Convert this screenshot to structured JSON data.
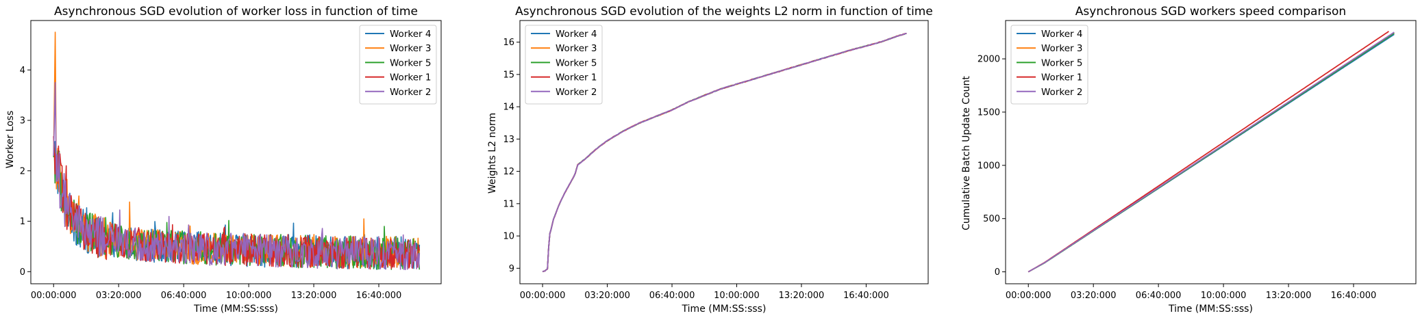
{
  "chart_data": [
    {
      "type": "line",
      "title": "Asynchronous SGD evolution of worker loss in function of time",
      "xlabel": "Time (MM:SS:sss)",
      "ylabel": "Worker Loss",
      "x_unit": "seconds",
      "xlim": [
        -4200,
        71500
      ],
      "ylim": [
        -0.24,
        4.98
      ],
      "xticks": [
        0,
        12000,
        24000,
        36000,
        48000,
        60000
      ],
      "xtick_labels": [
        "00:00:000",
        "03:20:000",
        "06:40:000",
        "10:00:000",
        "13:20:000",
        "16:40:000"
      ],
      "yticks": [
        0,
        1,
        2,
        3,
        4
      ],
      "ytick_labels": [
        "0",
        "1",
        "2",
        "3",
        "4"
      ],
      "legend": "top-right",
      "series": [
        {
          "name": "Worker 4",
          "color": "#1f77b4",
          "x": [
            0,
            500,
            1000,
            1500,
            2000,
            3000,
            4000,
            5000,
            6000,
            8000,
            10000,
            12000,
            15000,
            18000,
            21000,
            24000,
            27000,
            30000,
            33000,
            36000,
            39000,
            42000,
            45000,
            48000,
            51000,
            54000,
            57000,
            60000,
            63000,
            66000,
            67500
          ],
          "y": [
            2.3,
            2.2,
            1.9,
            1.6,
            1.4,
            1.15,
            0.95,
            0.85,
            0.78,
            0.7,
            0.65,
            0.6,
            0.55,
            0.52,
            0.5,
            0.48,
            0.46,
            0.45,
            0.44,
            0.43,
            0.42,
            0.41,
            0.4,
            0.4,
            0.39,
            0.38,
            0.38,
            0.37,
            0.37,
            0.36,
            0.36
          ]
        },
        {
          "name": "Worker 3",
          "color": "#ff7f0e",
          "x": [
            0,
            300,
            500,
            1000,
            1500,
            2000,
            3000,
            4000,
            5000,
            6000,
            8000,
            10000,
            12000,
            15000,
            18000,
            21000,
            24000,
            27000,
            30000,
            33000,
            36000,
            39000,
            42000,
            45000,
            48000,
            51000,
            54000,
            57000,
            60000,
            63000,
            66000,
            67500
          ],
          "y": [
            2.3,
            4.75,
            2.1,
            1.85,
            1.55,
            1.4,
            1.15,
            0.98,
            0.87,
            0.8,
            0.71,
            0.66,
            0.61,
            0.56,
            0.53,
            0.5,
            0.48,
            0.47,
            0.46,
            0.45,
            0.44,
            0.43,
            0.42,
            0.41,
            0.41,
            0.4,
            0.39,
            0.39,
            0.38,
            0.38,
            0.37,
            0.37
          ]
        },
        {
          "name": "Worker 5",
          "color": "#2ca02c",
          "x": [
            0,
            500,
            1000,
            1500,
            2000,
            3000,
            4000,
            5000,
            6000,
            8000,
            10000,
            12000,
            15000,
            18000,
            21000,
            24000,
            27000,
            30000,
            33000,
            36000,
            39000,
            42000,
            45000,
            48000,
            51000,
            54000,
            57000,
            60000,
            63000,
            66000,
            67500
          ],
          "y": [
            2.3,
            2.15,
            1.9,
            1.6,
            1.4,
            1.15,
            0.96,
            0.86,
            0.79,
            0.7,
            0.65,
            0.6,
            0.55,
            0.52,
            0.5,
            0.48,
            0.47,
            0.45,
            0.44,
            0.43,
            0.42,
            0.41,
            0.4,
            0.4,
            0.39,
            0.38,
            0.38,
            0.37,
            0.37,
            0.36,
            0.36
          ]
        },
        {
          "name": "Worker 1",
          "color": "#d62728",
          "x": [
            0,
            500,
            1000,
            1500,
            2000,
            3000,
            4000,
            5000,
            6000,
            8000,
            10000,
            12000,
            15000,
            18000,
            21000,
            24000,
            27000,
            30000,
            33000,
            36000,
            39000,
            42000,
            45000,
            48000,
            51000,
            54000,
            57000,
            60000,
            63000,
            66000,
            67500
          ],
          "y": [
            2.3,
            2.2,
            1.9,
            1.6,
            1.4,
            1.15,
            0.96,
            0.86,
            0.78,
            0.7,
            0.65,
            0.6,
            0.55,
            0.52,
            0.5,
            0.48,
            0.46,
            0.45,
            0.44,
            0.43,
            0.42,
            0.41,
            0.4,
            0.4,
            0.39,
            0.38,
            0.38,
            0.37,
            0.37,
            0.36,
            0.36
          ]
        },
        {
          "name": "Worker 2",
          "color": "#9467bd",
          "x": [
            0,
            300,
            500,
            1000,
            1500,
            2000,
            3000,
            4000,
            5000,
            6000,
            8000,
            10000,
            12000,
            15000,
            18000,
            21000,
            24000,
            27000,
            30000,
            33000,
            36000,
            39000,
            42000,
            45000,
            48000,
            51000,
            54000,
            57000,
            60000,
            63000,
            66000,
            67500
          ],
          "y": [
            2.3,
            3.75,
            2.1,
            1.85,
            1.6,
            1.4,
            1.15,
            0.97,
            0.87,
            0.79,
            0.7,
            0.65,
            0.6,
            0.55,
            0.52,
            0.5,
            0.48,
            0.46,
            0.45,
            0.44,
            0.43,
            0.42,
            0.41,
            0.4,
            0.4,
            0.39,
            0.38,
            0.38,
            0.37,
            0.37,
            0.36,
            0.36
          ]
        }
      ]
    },
    {
      "type": "line",
      "title": "Asynchronous SGD evolution of the weights L2 norm in function of time",
      "xlabel": "Time (MM:SS:sss)",
      "ylabel": "Weights L2 norm",
      "x_unit": "seconds",
      "xlim": [
        -4200,
        71500
      ],
      "ylim": [
        8.52,
        16.67
      ],
      "xticks": [
        0,
        12000,
        24000,
        36000,
        48000,
        60000
      ],
      "xtick_labels": [
        "00:00:000",
        "03:20:000",
        "06:40:000",
        "10:00:000",
        "13:20:000",
        "16:40:000"
      ],
      "yticks": [
        9,
        10,
        11,
        12,
        13,
        14,
        15,
        16
      ],
      "ytick_labels": [
        "9",
        "10",
        "11",
        "12",
        "13",
        "14",
        "15",
        "16"
      ],
      "legend": "top-left",
      "x": [
        0,
        500,
        1000,
        1200,
        1500,
        2000,
        3000,
        4000,
        5000,
        6000,
        6500,
        8000,
        10000,
        12000,
        15000,
        18000,
        21000,
        24000,
        27000,
        30000,
        33000,
        36000,
        39000,
        42000,
        45000,
        48000,
        51000,
        54000,
        57000,
        60000,
        63000,
        66000,
        67500
      ],
      "series": [
        {
          "name": "Worker 4",
          "color": "#1f77b4",
          "values": [
            8.9,
            8.92,
            9.0,
            10.0,
            10.15,
            10.5,
            10.95,
            11.3,
            11.6,
            11.9,
            12.2,
            12.4,
            12.7,
            12.95,
            13.25,
            13.5,
            13.7,
            13.9,
            14.15,
            14.35,
            14.55,
            14.7,
            14.85,
            15.0,
            15.15,
            15.3,
            15.45,
            15.6,
            15.75,
            15.88,
            16.02,
            16.2,
            16.27
          ]
        },
        {
          "name": "Worker 3",
          "color": "#ff7f0e",
          "values": [
            8.9,
            8.92,
            9.0,
            10.0,
            10.15,
            10.5,
            10.95,
            11.3,
            11.6,
            11.9,
            12.2,
            12.4,
            12.7,
            12.95,
            13.25,
            13.5,
            13.7,
            13.9,
            14.15,
            14.35,
            14.55,
            14.7,
            14.85,
            15.0,
            15.15,
            15.3,
            15.45,
            15.6,
            15.75,
            15.88,
            16.02,
            16.2,
            16.27
          ]
        },
        {
          "name": "Worker 5",
          "color": "#2ca02c",
          "values": [
            8.9,
            8.92,
            9.0,
            10.0,
            10.15,
            10.5,
            10.95,
            11.3,
            11.6,
            11.9,
            12.2,
            12.4,
            12.7,
            12.95,
            13.25,
            13.5,
            13.7,
            13.9,
            14.15,
            14.35,
            14.55,
            14.7,
            14.85,
            15.0,
            15.15,
            15.3,
            15.45,
            15.6,
            15.75,
            15.88,
            16.02,
            16.2,
            16.27
          ]
        },
        {
          "name": "Worker 1",
          "color": "#d62728",
          "values": [
            8.9,
            8.92,
            9.0,
            10.0,
            10.15,
            10.5,
            10.95,
            11.3,
            11.6,
            11.9,
            12.2,
            12.4,
            12.7,
            12.95,
            13.25,
            13.5,
            13.7,
            13.9,
            14.15,
            14.35,
            14.55,
            14.7,
            14.85,
            15.0,
            15.15,
            15.3,
            15.45,
            15.6,
            15.75,
            15.88,
            16.02,
            16.2,
            16.27
          ]
        },
        {
          "name": "Worker 2",
          "color": "#9467bd",
          "values": [
            8.9,
            8.92,
            9.0,
            10.0,
            10.15,
            10.5,
            10.95,
            11.3,
            11.6,
            11.9,
            12.2,
            12.4,
            12.7,
            12.95,
            13.25,
            13.5,
            13.7,
            13.9,
            14.15,
            14.35,
            14.55,
            14.7,
            14.85,
            15.0,
            15.15,
            15.3,
            15.45,
            15.6,
            15.75,
            15.88,
            16.02,
            16.2,
            16.27
          ]
        }
      ]
    },
    {
      "type": "line",
      "title": "Asynchronous SGD workers speed comparison",
      "xlabel": "Time (MM:SS:sss)",
      "ylabel": "Cumulative Batch Update Count",
      "x_unit": "seconds",
      "xlim": [
        -4200,
        71500
      ],
      "ylim": [
        -112,
        2360
      ],
      "xticks": [
        0,
        12000,
        24000,
        36000,
        48000,
        60000
      ],
      "xtick_labels": [
        "00:00:000",
        "03:20:000",
        "06:40:000",
        "10:00:000",
        "13:20:000",
        "16:40:000"
      ],
      "yticks": [
        0,
        500,
        1000,
        1500,
        2000
      ],
      "ytick_labels": [
        "0",
        "500",
        "1000",
        "1500",
        "2000"
      ],
      "legend": "top-left",
      "series": [
        {
          "name": "Worker 4",
          "color": "#1f77b4",
          "x": [
            0,
            3000,
            67500
          ],
          "y": [
            0,
            85,
            2230
          ]
        },
        {
          "name": "Worker 3",
          "color": "#ff7f0e",
          "x": [
            0,
            3000,
            67500
          ],
          "y": [
            0,
            87,
            2245
          ]
        },
        {
          "name": "Worker 5",
          "color": "#2ca02c",
          "x": [
            0,
            3000,
            67500
          ],
          "y": [
            0,
            84,
            2240
          ]
        },
        {
          "name": "Worker 1",
          "color": "#d62728",
          "x": [
            0,
            3000,
            66500
          ],
          "y": [
            0,
            88,
            2258
          ]
        },
        {
          "name": "Worker 2",
          "color": "#9467bd",
          "x": [
            0,
            3000,
            67500
          ],
          "y": [
            0,
            86,
            2250
          ]
        }
      ]
    }
  ]
}
